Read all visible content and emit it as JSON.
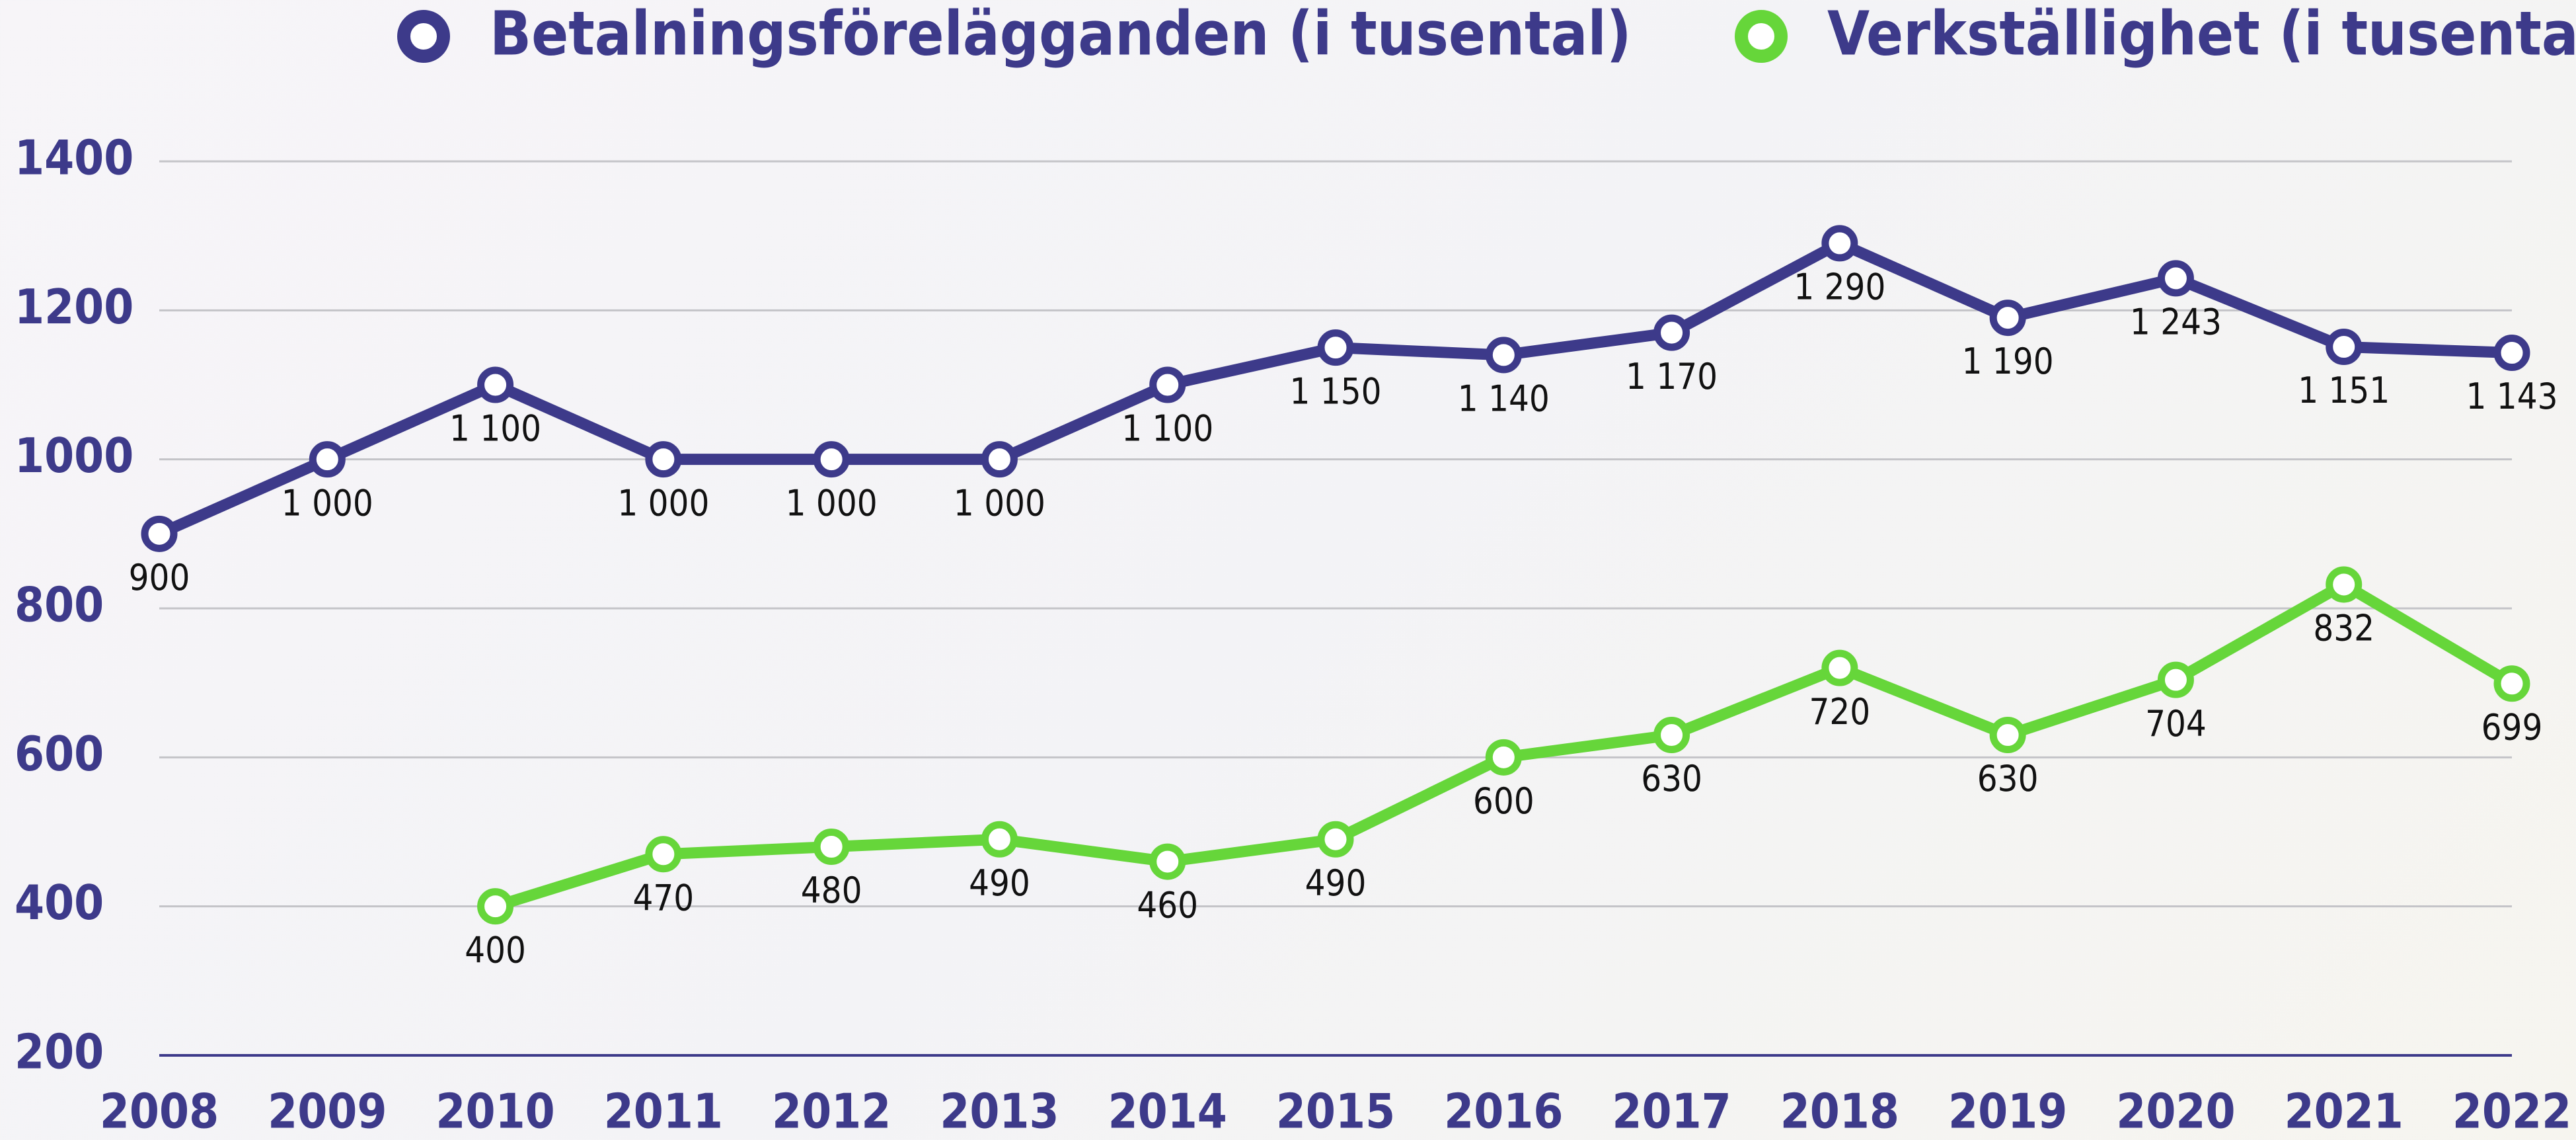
{
  "chart_data": {
    "type": "line",
    "categories": [
      "2008",
      "2009",
      "2010",
      "2011",
      "2012",
      "2013",
      "2014",
      "2015",
      "2016",
      "2017",
      "2018",
      "2019",
      "2020",
      "2021",
      "2022"
    ],
    "series": [
      {
        "name": "Betalningsförelägganden (i tusental)",
        "color": "#3d3a8a",
        "values": [
          900,
          1000,
          1100,
          1000,
          1000,
          1000,
          1100,
          1150,
          1140,
          1170,
          1290,
          1190,
          1243,
          1151,
          1143
        ],
        "value_labels": [
          "900",
          "1 000",
          "1 100",
          "1 000",
          "1 000",
          "1 000",
          "1 100",
          "1 150",
          "1 140",
          "1 170",
          "1 290",
          "1 190",
          "1 243",
          "1 151",
          "1 143"
        ]
      },
      {
        "name": "Verkställighet (i tusental)",
        "color": "#66d63a",
        "values": [
          null,
          null,
          400,
          470,
          480,
          490,
          460,
          490,
          600,
          630,
          720,
          630,
          704,
          832,
          699
        ],
        "value_labels": [
          null,
          null,
          "400",
          "470",
          "480",
          "490",
          "460",
          "490",
          "600",
          "630",
          "720",
          "630",
          "704",
          "832",
          "699"
        ]
      }
    ],
    "ylim": [
      200,
      1400
    ],
    "yticks": [
      200,
      400,
      600,
      800,
      1000,
      1200,
      1400
    ],
    "grid": true
  }
}
